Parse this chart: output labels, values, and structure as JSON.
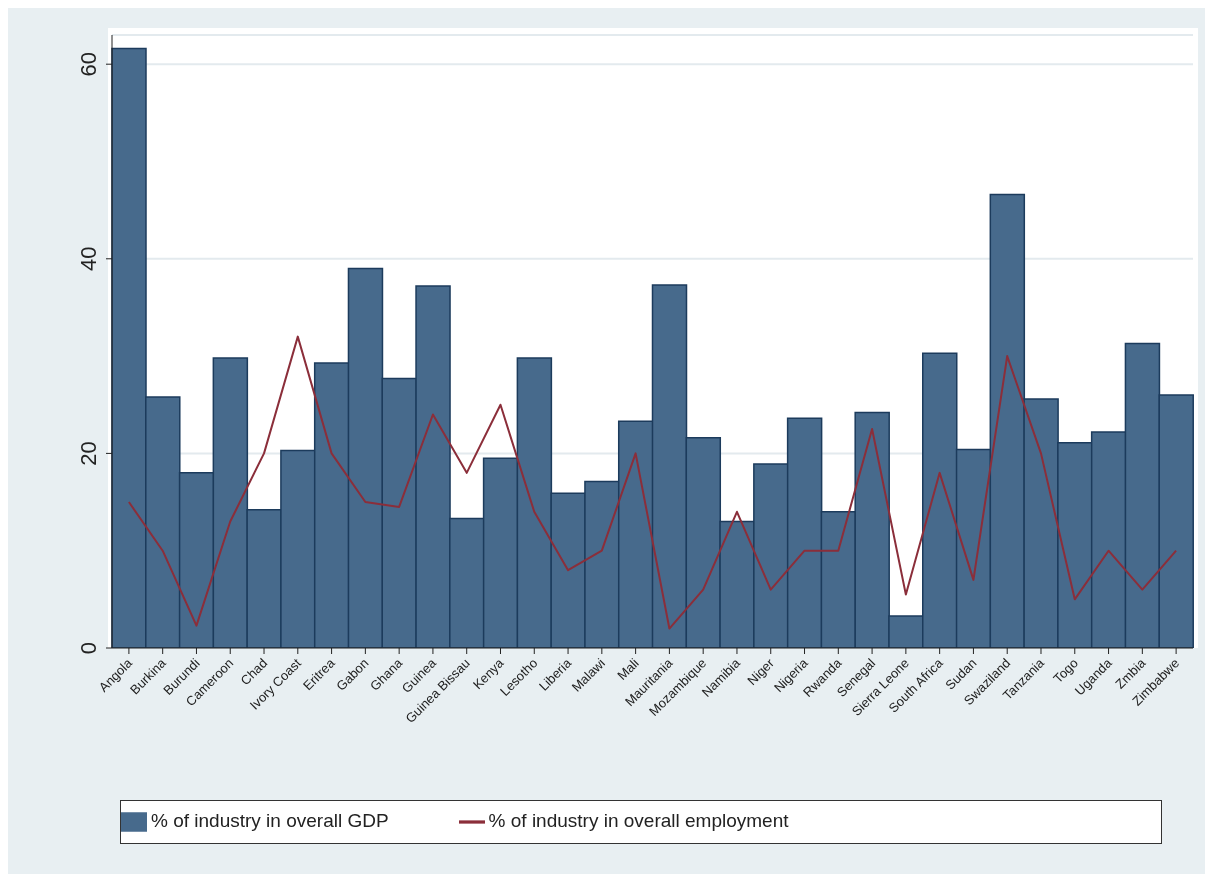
{
  "chart_data": {
    "type": "bar",
    "categories": [
      "Angola",
      "Burkina",
      "Burundi",
      "Cameroon",
      "Chad",
      "Ivory Coast",
      "Eritrea",
      "Gabon",
      "Ghana",
      "Guinea",
      "Guinea Bissau",
      "Kenya",
      "Lesotho",
      "Liberia",
      "Malawi",
      "Mali",
      "Mauritania",
      "Mozambique",
      "Namibia",
      "Niger",
      "Nigeria",
      "Rwanda",
      "Senegal",
      "Sierra Leone",
      "South Africa",
      "Sudan",
      "Swaziland",
      "Tanzania",
      "Togo",
      "Uganda",
      "Zmbia",
      "Zimbabwe"
    ],
    "series": [
      {
        "name": "% of industry in overall GDP",
        "color": "#476a8c",
        "values": [
          61.6,
          25.8,
          18,
          29.8,
          14.2,
          20.3,
          29.3,
          39,
          27.7,
          37.2,
          13.3,
          19.5,
          29.8,
          15.9,
          17.1,
          23.3,
          37.3,
          21.6,
          13,
          18.9,
          23.6,
          14,
          24.2,
          3.3,
          30.3,
          20.4,
          46.6,
          25.6,
          21.1,
          22.2,
          31.3,
          26
        ]
      },
      {
        "name": "% of industry in overall employment",
        "type": "line",
        "color": "#8b2e3a",
        "values": [
          15,
          10,
          2.3,
          13,
          20,
          32,
          20,
          15,
          14.5,
          24,
          18,
          25,
          14,
          8,
          10,
          20,
          2,
          6,
          14,
          6,
          10,
          10,
          22.5,
          5.5,
          18,
          7,
          30,
          20,
          5,
          10,
          6,
          10
        ]
      }
    ],
    "ylim": [
      0,
      63
    ],
    "yticks": [
      0,
      20,
      40,
      60
    ],
    "grid": "y",
    "legend": "bottom",
    "marker": "none",
    "line_style": "solid"
  }
}
